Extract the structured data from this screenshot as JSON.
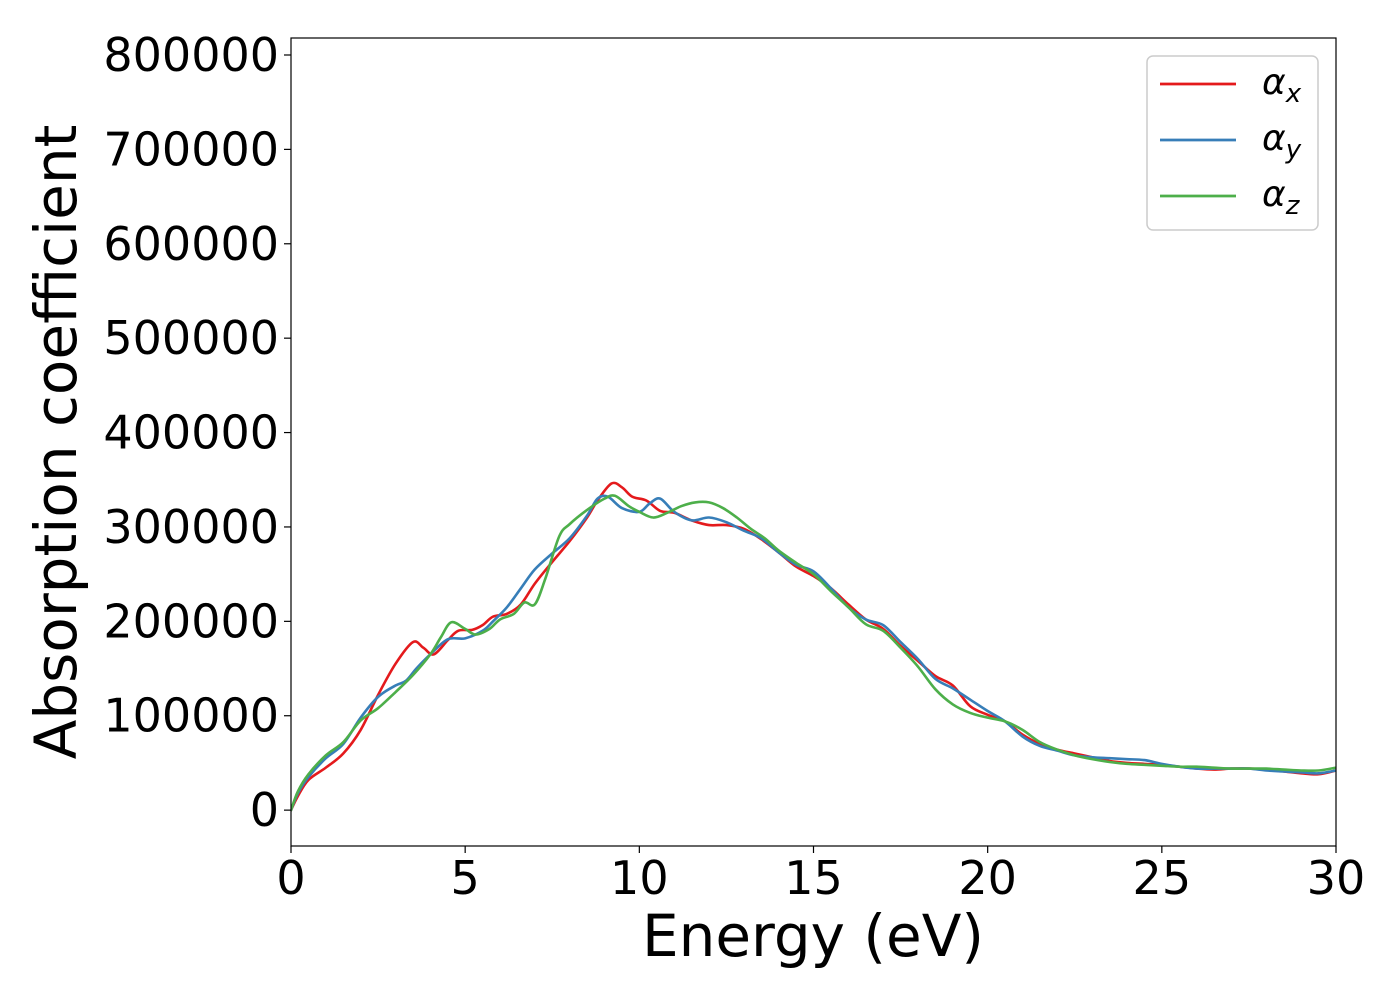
{
  "chart_data": {
    "type": "line",
    "xlabel": "Energy (eV)",
    "ylabel": "Absorption coefficient",
    "xlim": [
      0,
      30
    ],
    "ylim": [
      -38000,
      818000
    ],
    "x_ticks": [
      "0",
      "5",
      "10",
      "15",
      "20",
      "25",
      "30"
    ],
    "y_ticks": [
      "0",
      "100000",
      "200000",
      "300000",
      "400000",
      "500000",
      "600000",
      "700000",
      "800000"
    ],
    "grid": false,
    "legend": {
      "position": "top-right",
      "entries": [
        {
          "symbol": "α",
          "subscript": "x",
          "color": "#e41a1c"
        },
        {
          "symbol": "α",
          "subscript": "y",
          "color": "#377eb8"
        },
        {
          "symbol": "α",
          "subscript": "z",
          "color": "#4daf4a"
        }
      ]
    },
    "series": [
      {
        "key": "alpha_x",
        "color": "#e41a1c",
        "points": [
          [
            0,
            0
          ],
          [
            0.2,
            15000
          ],
          [
            0.5,
            32000
          ],
          [
            1,
            45000
          ],
          [
            1.5,
            60000
          ],
          [
            2,
            85000
          ],
          [
            2.5,
            122000
          ],
          [
            3,
            155000
          ],
          [
            3.5,
            178000
          ],
          [
            3.8,
            172000
          ],
          [
            4.1,
            165000
          ],
          [
            4.5,
            180000
          ],
          [
            4.8,
            190000
          ],
          [
            5.2,
            191000
          ],
          [
            5.5,
            196000
          ],
          [
            5.8,
            205000
          ],
          [
            6.2,
            208000
          ],
          [
            6.6,
            218000
          ],
          [
            7,
            240000
          ],
          [
            7.5,
            263000
          ],
          [
            8,
            285000
          ],
          [
            8.5,
            310000
          ],
          [
            8.8,
            328000
          ],
          [
            9.2,
            346000
          ],
          [
            9.5,
            342000
          ],
          [
            9.8,
            332000
          ],
          [
            10.2,
            328000
          ],
          [
            10.6,
            317000
          ],
          [
            11,
            315000
          ],
          [
            11.5,
            307000
          ],
          [
            12,
            302000
          ],
          [
            12.5,
            302000
          ],
          [
            13,
            298000
          ],
          [
            13.5,
            287000
          ],
          [
            14,
            273000
          ],
          [
            14.5,
            258000
          ],
          [
            15,
            248000
          ],
          [
            15.5,
            235000
          ],
          [
            16,
            218000
          ],
          [
            16.5,
            202000
          ],
          [
            17,
            192000
          ],
          [
            17.5,
            174000
          ],
          [
            18,
            158000
          ],
          [
            18.5,
            142000
          ],
          [
            19,
            132000
          ],
          [
            19.5,
            110000
          ],
          [
            20,
            101000
          ],
          [
            20.5,
            94000
          ],
          [
            21,
            80000
          ],
          [
            21.5,
            70000
          ],
          [
            22,
            64000
          ],
          [
            22.5,
            60000
          ],
          [
            23,
            56000
          ],
          [
            23.5,
            52000
          ],
          [
            24,
            50000
          ],
          [
            24.5,
            49000
          ],
          [
            25,
            48000
          ],
          [
            25.5,
            46000
          ],
          [
            26,
            44000
          ],
          [
            26.5,
            43000
          ],
          [
            27,
            44000
          ],
          [
            27.5,
            44000
          ],
          [
            28,
            43000
          ],
          [
            28.5,
            41000
          ],
          [
            29,
            39000
          ],
          [
            29.5,
            38000
          ],
          [
            30,
            42000
          ]
        ]
      },
      {
        "key": "alpha_y",
        "color": "#377eb8",
        "points": [
          [
            0,
            0
          ],
          [
            0.2,
            18000
          ],
          [
            0.5,
            35000
          ],
          [
            1,
            55000
          ],
          [
            1.5,
            70000
          ],
          [
            2,
            98000
          ],
          [
            2.5,
            120000
          ],
          [
            3,
            132000
          ],
          [
            3.3,
            137000
          ],
          [
            3.6,
            150000
          ],
          [
            4,
            165000
          ],
          [
            4.5,
            181000
          ],
          [
            5,
            182000
          ],
          [
            5.5,
            190000
          ],
          [
            5.8,
            200000
          ],
          [
            6.2,
            215000
          ],
          [
            6.6,
            235000
          ],
          [
            7,
            255000
          ],
          [
            7.5,
            272000
          ],
          [
            8,
            288000
          ],
          [
            8.5,
            312000
          ],
          [
            8.8,
            330000
          ],
          [
            9.1,
            332000
          ],
          [
            9.5,
            320000
          ],
          [
            10,
            316000
          ],
          [
            10.3,
            325000
          ],
          [
            10.6,
            330000
          ],
          [
            11,
            316000
          ],
          [
            11.5,
            307000
          ],
          [
            12,
            310000
          ],
          [
            12.5,
            305000
          ],
          [
            13,
            296000
          ],
          [
            13.5,
            288000
          ],
          [
            14,
            273000
          ],
          [
            14.5,
            260000
          ],
          [
            15,
            253000
          ],
          [
            15.5,
            235000
          ],
          [
            16,
            215000
          ],
          [
            16.5,
            202000
          ],
          [
            17,
            196000
          ],
          [
            17.5,
            178000
          ],
          [
            18,
            160000
          ],
          [
            18.5,
            139000
          ],
          [
            19,
            129000
          ],
          [
            19.5,
            117000
          ],
          [
            20,
            105000
          ],
          [
            20.5,
            94000
          ],
          [
            21,
            78000
          ],
          [
            21.5,
            68000
          ],
          [
            22,
            63000
          ],
          [
            22.5,
            58000
          ],
          [
            23,
            56000
          ],
          [
            23.5,
            55000
          ],
          [
            24,
            54000
          ],
          [
            24.5,
            53000
          ],
          [
            25,
            49000
          ],
          [
            25.5,
            46000
          ],
          [
            26,
            44000
          ],
          [
            26.5,
            44000
          ],
          [
            27,
            44000
          ],
          [
            27.5,
            44000
          ],
          [
            28,
            42000
          ],
          [
            28.5,
            41000
          ],
          [
            29,
            40000
          ],
          [
            29.5,
            39000
          ],
          [
            30,
            42000
          ]
        ]
      },
      {
        "key": "alpha_z",
        "color": "#4daf4a",
        "points": [
          [
            0,
            0
          ],
          [
            0.2,
            20000
          ],
          [
            0.5,
            38000
          ],
          [
            1,
            58000
          ],
          [
            1.5,
            72000
          ],
          [
            2,
            95000
          ],
          [
            2.5,
            108000
          ],
          [
            3,
            125000
          ],
          [
            3.5,
            143000
          ],
          [
            4,
            165000
          ],
          [
            4.3,
            183000
          ],
          [
            4.6,
            199000
          ],
          [
            5,
            192000
          ],
          [
            5.3,
            186000
          ],
          [
            5.7,
            192000
          ],
          [
            6,
            202000
          ],
          [
            6.4,
            208000
          ],
          [
            6.7,
            220000
          ],
          [
            7,
            218000
          ],
          [
            7.3,
            245000
          ],
          [
            7.7,
            290000
          ],
          [
            8,
            303000
          ],
          [
            8.5,
            318000
          ],
          [
            9,
            330000
          ],
          [
            9.3,
            333000
          ],
          [
            9.7,
            322000
          ],
          [
            10,
            316000
          ],
          [
            10.4,
            310000
          ],
          [
            10.8,
            315000
          ],
          [
            11.2,
            322000
          ],
          [
            11.6,
            326000
          ],
          [
            12,
            326000
          ],
          [
            12.4,
            320000
          ],
          [
            12.8,
            310000
          ],
          [
            13.2,
            298000
          ],
          [
            13.6,
            288000
          ],
          [
            14,
            275000
          ],
          [
            14.5,
            262000
          ],
          [
            15,
            250000
          ],
          [
            15.5,
            232000
          ],
          [
            16,
            215000
          ],
          [
            16.5,
            197000
          ],
          [
            17,
            190000
          ],
          [
            17.5,
            172000
          ],
          [
            18,
            152000
          ],
          [
            18.5,
            128000
          ],
          [
            19,
            112000
          ],
          [
            19.5,
            103000
          ],
          [
            20,
            98000
          ],
          [
            20.5,
            94000
          ],
          [
            21,
            85000
          ],
          [
            21.5,
            72000
          ],
          [
            22,
            64000
          ],
          [
            22.5,
            58000
          ],
          [
            23,
            54000
          ],
          [
            23.5,
            51000
          ],
          [
            24,
            49000
          ],
          [
            24.5,
            48000
          ],
          [
            25,
            47000
          ],
          [
            25.5,
            46000
          ],
          [
            26,
            46000
          ],
          [
            26.5,
            45000
          ],
          [
            27,
            44000
          ],
          [
            27.5,
            44000
          ],
          [
            28,
            44000
          ],
          [
            28.5,
            43000
          ],
          [
            29,
            42000
          ],
          [
            29.5,
            42000
          ],
          [
            30,
            45000
          ]
        ]
      }
    ]
  }
}
